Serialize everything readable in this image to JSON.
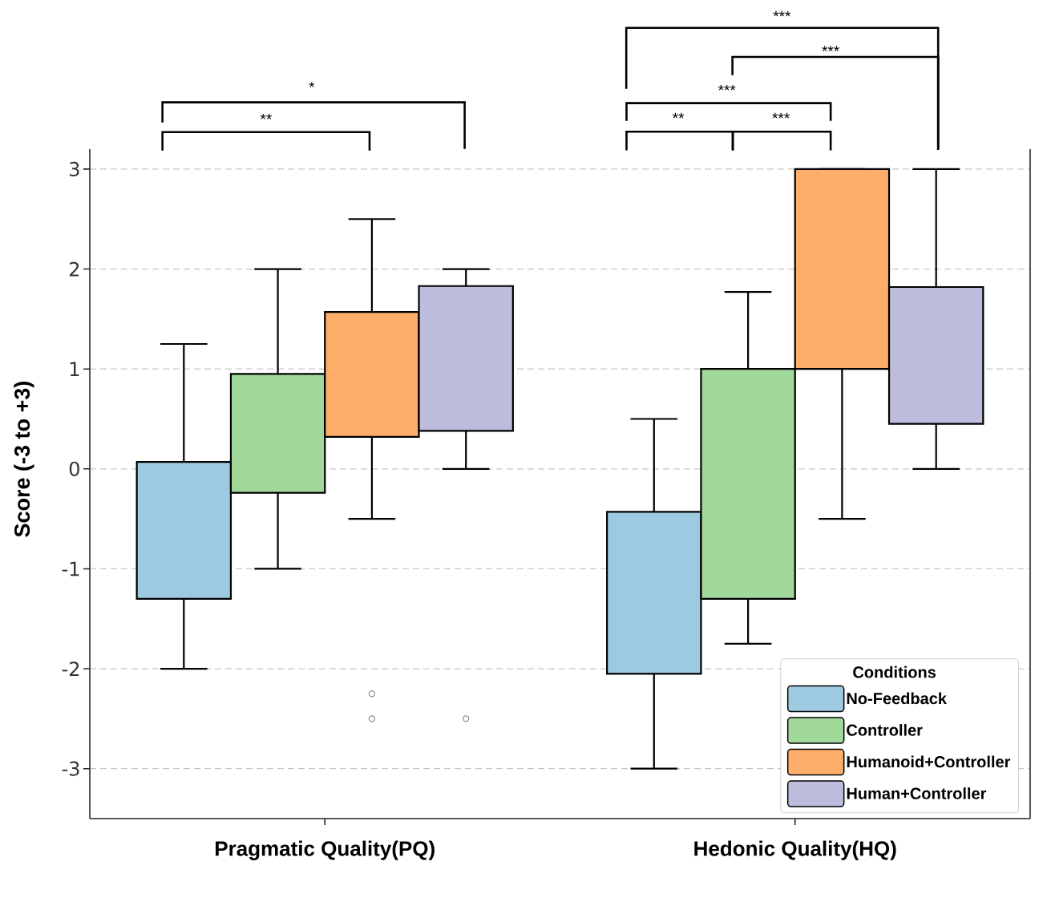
{
  "chart_data": {
    "type": "box",
    "categories": [
      "Pragmatic Quality(PQ)",
      "Hedonic Quality(HQ)"
    ],
    "ylabel": "Score (-3 to +3)",
    "legend_title": "Conditions",
    "legend": "bottom right",
    "grid": "y",
    "marker": "circle",
    "ylim": [
      -3.5,
      3.2
    ],
    "yticks": [
      -3,
      -2,
      -1,
      0,
      1,
      2,
      3
    ],
    "annotations": [
      "**",
      "*",
      "**",
      "***",
      "***",
      "***",
      "***"
    ],
    "series": [
      {
        "name": "No-Feedback",
        "color": "#9ecae1",
        "boxes": [
          {
            "low": -2,
            "q1": -1.3,
            "median": null,
            "q3": 0.07,
            "high": 1.25
          },
          {
            "low": -3,
            "q1": -2.05,
            "median": null,
            "q3": -0.43,
            "high": 0.5
          }
        ]
      },
      {
        "name": "Controller",
        "color": "#a1d99b",
        "boxes": [
          {
            "low": -1,
            "q1": -0.24,
            "median": null,
            "q3": 0.95,
            "high": 2
          },
          {
            "low": -1.75,
            "q1": -1.3,
            "median": null,
            "q3": 1,
            "high": 1.77
          }
        ]
      },
      {
        "name": "Humanoid+Controller",
        "color": "#fdae6b",
        "boxes": [
          {
            "low": -0.5,
            "q1": 0.32,
            "median": null,
            "q3": 1.57,
            "high": 2.5,
            "outliers": [
              -2.25,
              -2.5
            ]
          },
          {
            "low": -0.5,
            "q1": 1,
            "median": null,
            "q3": 3,
            "high": 3
          }
        ]
      },
      {
        "name": "Human+Controller",
        "color": "#bcbddc",
        "boxes": [
          {
            "low": 0,
            "q1": 0.38,
            "median": null,
            "q3": 1.83,
            "high": 2,
            "outliers": [
              -2.5
            ]
          },
          {
            "low": 0,
            "q1": 0.45,
            "median": null,
            "q3": 1.82,
            "high": 3
          }
        ]
      }
    ]
  }
}
